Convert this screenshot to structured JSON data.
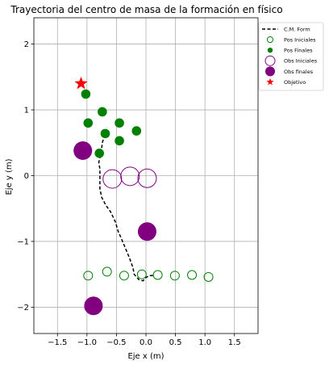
{
  "chart_data": {
    "type": "scatter",
    "title": "Trayectoria del centro de masa de la formación en físico",
    "xlabel": "Eje x (m)",
    "ylabel": "Eje y (m)",
    "xlim": [
      -1.9,
      1.9
    ],
    "ylim": [
      -2.4,
      2.4
    ],
    "x_ticks": [
      -1.5,
      -1.0,
      -0.5,
      0.0,
      0.5,
      1.0,
      1.5
    ],
    "x_tick_labels": [
      "−1.5",
      "−1.0",
      "−0.5",
      "0.0",
      "0.5",
      "1.0",
      "1.5"
    ],
    "y_ticks": [
      -2,
      -1,
      0,
      1,
      2
    ],
    "y_tick_labels": [
      "−2",
      "−1",
      "0",
      "1",
      "2"
    ],
    "grid": true,
    "legend_position": "outside-top-right",
    "legend": [
      {
        "label": "C.M. Form",
        "marker": "dashed-line",
        "color": "#000000"
      },
      {
        "label": "Pos Iniciales",
        "marker": "hollow-circle",
        "color": "#008000"
      },
      {
        "label": "Pos Finales",
        "marker": "filled-circle",
        "color": "#008000"
      },
      {
        "label": "Obs Iniciales",
        "marker": "hollow-circle",
        "color": "#800080"
      },
      {
        "label": "Obs finales",
        "marker": "filled-circle",
        "color": "#800080"
      },
      {
        "label": "Objetivo",
        "marker": "star",
        "color": "#ff0000"
      }
    ],
    "series": {
      "cm_trajectory": {
        "name": "C.M. Form",
        "color": "#000000",
        "points": [
          [
            0.12,
            -1.52
          ],
          [
            0.05,
            -1.52
          ],
          [
            0.0,
            -1.55
          ],
          [
            -0.05,
            -1.6
          ],
          [
            -0.12,
            -1.58
          ],
          [
            -0.2,
            -1.5
          ],
          [
            -0.22,
            -1.4
          ],
          [
            -0.28,
            -1.25
          ],
          [
            -0.35,
            -1.1
          ],
          [
            -0.42,
            -0.95
          ],
          [
            -0.47,
            -0.85
          ],
          [
            -0.52,
            -0.7
          ],
          [
            -0.6,
            -0.55
          ],
          [
            -0.68,
            -0.45
          ],
          [
            -0.75,
            -0.33
          ],
          [
            -0.78,
            -0.2
          ],
          [
            -0.78,
            -0.05
          ],
          [
            -0.78,
            0.1
          ],
          [
            -0.8,
            0.2
          ],
          [
            -0.76,
            0.35
          ],
          [
            -0.74,
            0.5
          ],
          [
            -0.7,
            0.62
          ],
          [
            -0.66,
            0.73
          ]
        ]
      },
      "pos_iniciales": {
        "name": "Pos Iniciales",
        "color": "#008000",
        "points": [
          [
            -0.98,
            -1.52
          ],
          [
            -0.66,
            -1.46
          ],
          [
            -0.37,
            -1.52
          ],
          [
            -0.07,
            -1.5
          ],
          [
            0.2,
            -1.51
          ],
          [
            0.49,
            -1.52
          ],
          [
            0.78,
            -1.51
          ],
          [
            1.06,
            -1.54
          ]
        ]
      },
      "pos_finales": {
        "name": "Pos Finales",
        "color": "#008000",
        "points": [
          [
            -1.02,
            1.24
          ],
          [
            -0.98,
            0.8
          ],
          [
            -0.74,
            0.97
          ],
          [
            -0.69,
            0.64
          ],
          [
            -0.45,
            0.8
          ],
          [
            -0.45,
            0.53
          ],
          [
            -0.16,
            0.68
          ],
          [
            -0.79,
            0.34
          ]
        ]
      },
      "obs_iniciales": {
        "name": "Obs Iniciales",
        "color": "#800080",
        "points": [
          [
            -0.57,
            -0.05
          ],
          [
            -0.27,
            -0.01
          ],
          [
            0.02,
            -0.04
          ]
        ]
      },
      "obs_finales": {
        "name": "Obs finales",
        "color": "#800080",
        "points": [
          [
            -1.07,
            0.38
          ],
          [
            0.02,
            -0.85
          ],
          [
            -0.89,
            -1.98
          ]
        ]
      },
      "objetivo": {
        "name": "Objetivo",
        "color": "#ff0000",
        "points": [
          [
            -1.1,
            1.4
          ]
        ]
      }
    }
  }
}
